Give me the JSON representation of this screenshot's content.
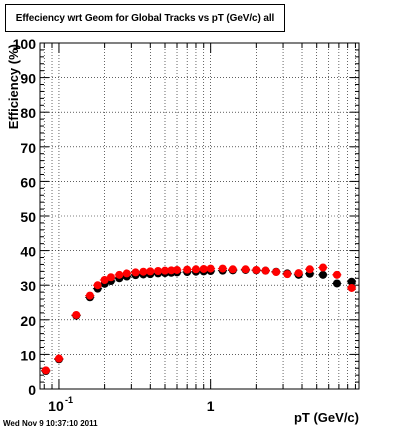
{
  "chart_data": {
    "type": "scatter",
    "title": "Effeciency wrt Geom for Global Tracks vs pT (GeV/c) all",
    "xlabel": "pT (GeV/c)",
    "ylabel": "Efficiency (%)",
    "x_scale": "log",
    "xlim": [
      0.075,
      9.5
    ],
    "ylim": [
      0,
      100
    ],
    "grid": true,
    "y_ticks": [
      0,
      10,
      20,
      30,
      40,
      50,
      60,
      70,
      80,
      90,
      100
    ],
    "x_ticks": [
      {
        "value": 0.1,
        "label": "10",
        "exponent": "-1"
      },
      {
        "value": 1,
        "label": "1",
        "exponent": ""
      }
    ],
    "series": [
      {
        "color": "#000000",
        "marker": "circle",
        "x": [
          0.082,
          0.1,
          0.13,
          0.16,
          0.18,
          0.2,
          0.22,
          0.25,
          0.28,
          0.32,
          0.36,
          0.4,
          0.45,
          0.5,
          0.55,
          0.6,
          0.7,
          0.8,
          0.9,
          1.0,
          1.2,
          1.4,
          1.7,
          2.0,
          2.3,
          2.7,
          3.2,
          3.8,
          4.5,
          5.5,
          6.8,
          8.5
        ],
        "y": [
          5.2,
          8.6,
          21.2,
          26.5,
          29.0,
          30.4,
          31.2,
          32.0,
          32.5,
          32.9,
          33.1,
          33.2,
          33.4,
          33.5,
          33.6,
          33.7,
          33.8,
          33.9,
          34.0,
          34.1,
          34.2,
          34.3,
          34.4,
          34.3,
          34.2,
          33.9,
          33.4,
          33.0,
          33.3,
          33.0,
          30.5,
          31.0
        ]
      },
      {
        "color": "#ff0000",
        "marker": "circle",
        "x": [
          0.082,
          0.1,
          0.13,
          0.16,
          0.18,
          0.2,
          0.22,
          0.25,
          0.28,
          0.32,
          0.36,
          0.4,
          0.45,
          0.5,
          0.55,
          0.6,
          0.7,
          0.8,
          0.9,
          1.0,
          1.2,
          1.4,
          1.7,
          2.0,
          2.3,
          2.7,
          3.2,
          3.8,
          4.5,
          5.5,
          6.8,
          8.5
        ],
        "y": [
          5.4,
          8.8,
          21.4,
          27.0,
          30.0,
          31.5,
          32.3,
          33.0,
          33.4,
          33.7,
          33.9,
          34.0,
          34.1,
          34.2,
          34.3,
          34.4,
          34.5,
          34.6,
          34.7,
          34.8,
          34.8,
          34.6,
          34.6,
          34.4,
          34.2,
          33.8,
          33.2,
          33.5,
          34.6,
          35.1,
          33.0,
          29.2
        ]
      }
    ],
    "timestamp": "Wed Nov  9 10:37:10 2011"
  }
}
